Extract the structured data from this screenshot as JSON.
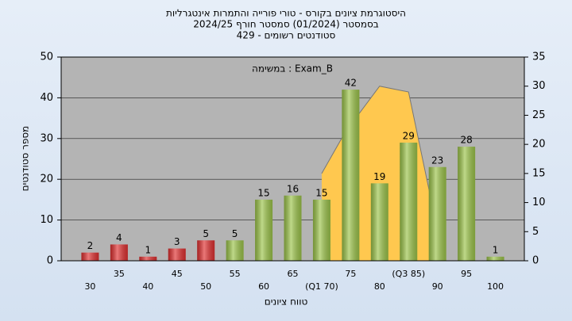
{
  "chart_data": {
    "type": "bar",
    "title": "היסטוגרמת ציונים בקורס - טורי פורייה והתמרות אינטגרליות",
    "subtitle": "בסמסטר  (01/2024)  סמסטר חורף 2024/25",
    "subtitle2": "סטודנטים רשומים - 429",
    "annotation": "Exam_B : במשימה",
    "ylabel": "מספר סטודנטים",
    "xlabel": "טווח ציונים",
    "categories": [
      "30",
      "35",
      "40",
      "45",
      "50",
      "55",
      "60",
      "65",
      "(Q1 70)",
      "75",
      "80",
      "(Q3 85)",
      "90",
      "95",
      "100"
    ],
    "series": [
      {
        "values": [
          2,
          4,
          1,
          3,
          5,
          5,
          15,
          16,
          15,
          42,
          19,
          29,
          23,
          28,
          1
        ],
        "colors": [
          "#e03030",
          "#e03030",
          "#e03030",
          "#e03030",
          "#e03030",
          "#9cc44a",
          "#9cc44a",
          "#9cc44a",
          "#9cc44a",
          "#9cc44a",
          "#9cc44a",
          "#9cc44a",
          "#9cc44a",
          "#9cc44a",
          "#9cc44a"
        ]
      },
      {
        "type": "area",
        "axis": "y2",
        "color": "#ffc84f",
        "x": [
          70,
          74,
          80,
          85,
          89
        ],
        "values": [
          15,
          22,
          30,
          29,
          10
        ]
      }
    ],
    "xlim": [
      25,
      105
    ],
    "ylim": [
      0,
      50
    ],
    "yticks": [
      0,
      10,
      20,
      30,
      40,
      50
    ],
    "y2lim": [
      0,
      35
    ],
    "y2ticks": [
      0,
      5,
      10,
      15,
      20,
      25,
      30,
      35
    ],
    "grid": true
  }
}
